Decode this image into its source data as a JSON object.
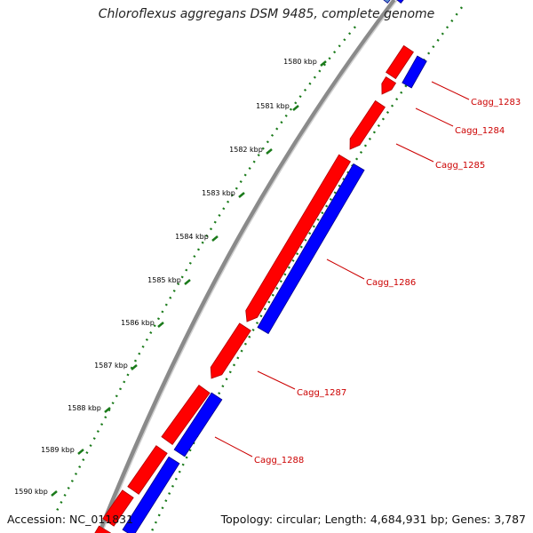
{
  "title": "Chloroflexus aggregans DSM 9485, complete genome",
  "footer": {
    "accession": "Accession: NC_011831",
    "topology": "Topology: circular; Length: 4,684,931 bp; Genes: 3,787"
  },
  "colors": {
    "forward_strand": "#ff0000",
    "reverse_strand": "#0000ff",
    "backbone": "#888888",
    "tick": "#1a7a1a",
    "label": "#cc0000"
  },
  "ticks": [
    {
      "label": "1580 kbp",
      "kbp": 1580
    },
    {
      "label": "1581 kbp",
      "kbp": 1581
    },
    {
      "label": "1582 kbp",
      "kbp": 1582
    },
    {
      "label": "1583 kbp",
      "kbp": 1583
    },
    {
      "label": "1584 kbp",
      "kbp": 1584
    },
    {
      "label": "1585 kbp",
      "kbp": 1585
    },
    {
      "label": "1586 kbp",
      "kbp": 1586
    },
    {
      "label": "1587 kbp",
      "kbp": 1587
    },
    {
      "label": "1588 kbp",
      "kbp": 1588
    },
    {
      "label": "1589 kbp",
      "kbp": 1589
    },
    {
      "label": "1590 kbp",
      "kbp": 1590
    }
  ],
  "genes": [
    {
      "label": "Cagg_1283"
    },
    {
      "label": "Cagg_1284"
    },
    {
      "label": "Cagg_1285"
    },
    {
      "label": "Cagg_1286"
    },
    {
      "label": "Cagg_1287"
    },
    {
      "label": "Cagg_1288"
    }
  ]
}
